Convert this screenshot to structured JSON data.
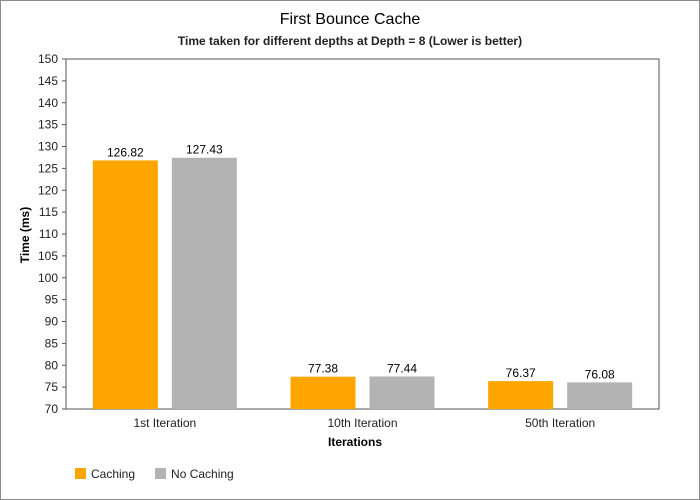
{
  "chart_data": {
    "type": "bar",
    "title": "First Bounce Cache",
    "subtitle": "Time taken for different depths at Depth = 8 (Lower is better)",
    "xlabel": "Iterations",
    "ylabel": "Time (ms)",
    "categories": [
      "1st Iteration",
      "10th Iteration",
      "50th Iteration"
    ],
    "series": [
      {
        "name": "Caching",
        "color": "#FFA500",
        "values": [
          126.82,
          77.38,
          76.37
        ]
      },
      {
        "name": "No Caching",
        "color": "#B3B3B3",
        "values": [
          127.43,
          77.44,
          76.08
        ]
      }
    ],
    "ylim": [
      70,
      150
    ],
    "yticks": [
      70,
      75,
      80,
      85,
      90,
      95,
      100,
      105,
      110,
      115,
      120,
      125,
      130,
      135,
      140,
      145,
      150
    ],
    "grid": false,
    "legend_position": "bottom-left"
  }
}
